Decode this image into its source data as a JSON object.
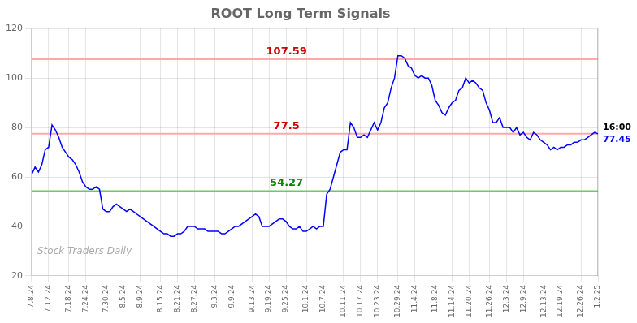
{
  "chart_data": {
    "type": "line",
    "title": "ROOT Long Term Signals",
    "categories": [
      "7.8.24",
      null,
      null,
      null,
      null,
      "7.12.24",
      null,
      null,
      null,
      null,
      null,
      "7.18.24",
      null,
      null,
      null,
      null,
      "7.24.24",
      null,
      null,
      null,
      null,
      null,
      "7.30.24",
      null,
      null,
      null,
      null,
      "8.5.24",
      null,
      null,
      null,
      null,
      "8.9.24",
      null,
      null,
      null,
      null,
      null,
      "8.15.24",
      null,
      null,
      null,
      null,
      "8.21.24",
      null,
      null,
      null,
      null,
      "8.27.24",
      null,
      null,
      null,
      null,
      null,
      "9.3.24",
      null,
      null,
      null,
      null,
      "9.9.24",
      null,
      null,
      null,
      null,
      null,
      "9.13.24",
      null,
      null,
      null,
      null,
      "9.19.24",
      null,
      null,
      null,
      null,
      "9.25.24",
      null,
      null,
      null,
      null,
      null,
      "10.1.24",
      null,
      null,
      null,
      null,
      "10.7.24",
      null,
      null,
      null,
      null,
      null,
      "10.11.24",
      null,
      null,
      null,
      null,
      "10.17.24",
      null,
      null,
      null,
      null,
      "10.23.24",
      null,
      null,
      null,
      null,
      null,
      "10.29.24",
      null,
      null,
      null,
      null,
      "11.4.24",
      null,
      null,
      null,
      null,
      null,
      "11.8.24",
      null,
      null,
      null,
      null,
      "11.14.24",
      null,
      null,
      null,
      null,
      "11.20.24",
      null,
      null,
      null,
      null,
      null,
      "11.26.24",
      null,
      null,
      null,
      null,
      "12.3.24",
      null,
      null,
      null,
      null,
      "12.9.24",
      null,
      null,
      null,
      null,
      null,
      "12.13.24",
      null,
      null,
      null,
      null,
      "12.19.24",
      null,
      null,
      null,
      null,
      null,
      "12.26.24",
      null,
      null,
      null,
      null,
      "1.2.25"
    ],
    "values": [
      61,
      64,
      62,
      65,
      71,
      72,
      81,
      79,
      76,
      72,
      70,
      68,
      67,
      65,
      62,
      58,
      56,
      55,
      55,
      56,
      55,
      47,
      46,
      46,
      48,
      49,
      48,
      47,
      46,
      47,
      46,
      45,
      44,
      43,
      42,
      41,
      40,
      39,
      38,
      37,
      37,
      36,
      36,
      37,
      37,
      38,
      40,
      40,
      40,
      39,
      39,
      39,
      38,
      38,
      38,
      38,
      37,
      37,
      38,
      39,
      40,
      40,
      41,
      42,
      43,
      44,
      45,
      44,
      40,
      40,
      40,
      41,
      42,
      43,
      43,
      42,
      40,
      39,
      39,
      40,
      38,
      38,
      39,
      40,
      39,
      40,
      40,
      53,
      55,
      60,
      65,
      70,
      71,
      71,
      82,
      80,
      76,
      76,
      77,
      76,
      79,
      82,
      79,
      82,
      88,
      90,
      96,
      100,
      109,
      109,
      108,
      105,
      104,
      101,
      100,
      101,
      100,
      100,
      97,
      91,
      89,
      86,
      85,
      88,
      90,
      91,
      95,
      96,
      100,
      98,
      99,
      98,
      96,
      95,
      90,
      87,
      82,
      82,
      84,
      80,
      80,
      80,
      78,
      80,
      77,
      78,
      76,
      75,
      78,
      77,
      75,
      74,
      73,
      71,
      72,
      71,
      72,
      72,
      73,
      73,
      74,
      74,
      75,
      75,
      76,
      77,
      78,
      77.45
    ],
    "color": "blue",
    "ylim": [
      20,
      120
    ],
    "yticks": [
      20,
      40,
      60,
      80,
      100,
      120
    ],
    "grid": true,
    "hlines": [
      {
        "y": 107.59,
        "label": "107.59",
        "color": "#ffaaaa",
        "label_color": "#cc0000"
      },
      {
        "y": 77.5,
        "label": "77.5",
        "color": "#ffaaaa",
        "label_color": "#cc0000"
      },
      {
        "y": 54.27,
        "label": "54.27",
        "color": "#66cc66",
        "label_color": "#008800"
      }
    ],
    "end_labels": [
      {
        "text": "16:00",
        "color": "black"
      },
      {
        "text": "77.45",
        "color": "blue"
      }
    ],
    "watermark": {
      "text": "Stock Traders Daily",
      "color": "#aaaaaa"
    }
  }
}
